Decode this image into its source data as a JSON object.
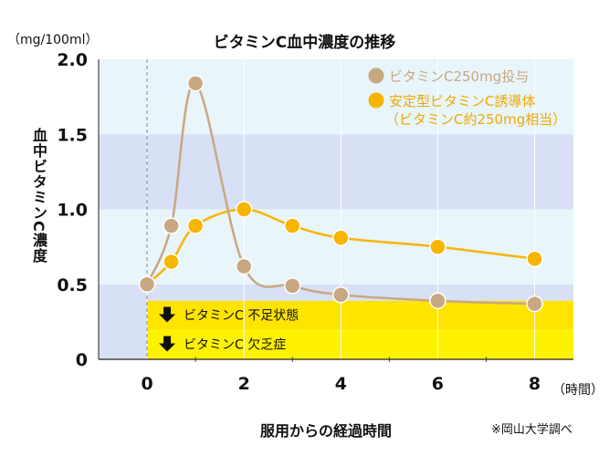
{
  "chart_data": {
    "type": "line",
    "title": "ビタミンC血中濃度の推移",
    "unit_label": "（mg/100ml）",
    "ylabel": "血中ビタミンC濃度",
    "xlabel": "服用からの経過時間",
    "x_unit_label": "（時間）",
    "source": "※岡山大学調べ",
    "xlim": [
      -1,
      8.8
    ],
    "ylim": [
      0,
      2.0
    ],
    "x_ticks": [
      0,
      2,
      4,
      6,
      8
    ],
    "y_ticks": [
      0,
      0.5,
      1.0,
      1.5,
      2.0
    ],
    "x_tick_labels": [
      "0",
      "2",
      "4",
      "6",
      "8"
    ],
    "y_tick_labels": [
      "0",
      "0.5",
      "1.0",
      "1.5",
      "2.0"
    ],
    "series": [
      {
        "name": "ビタミンC250mg投与",
        "color": "#c8a882",
        "x": [
          0,
          0.5,
          1,
          2,
          3,
          4,
          6,
          8
        ],
        "y": [
          0.5,
          0.89,
          1.84,
          0.62,
          0.49,
          0.43,
          0.39,
          0.37
        ]
      },
      {
        "name": "安定型ビタミンC誘導体",
        "name_line2": "（ビタミンC約250mg相当）",
        "color": "#f8b500",
        "x": [
          0,
          0.5,
          1,
          2,
          3,
          4,
          6,
          8
        ],
        "y": [
          0.5,
          0.65,
          0.89,
          1.0,
          0.89,
          0.81,
          0.75,
          0.67
        ]
      }
    ],
    "bands": [
      {
        "from": 0,
        "to": 0.5,
        "color": "#d8e0f5"
      },
      {
        "from": 0.5,
        "to": 1.0,
        "color": "#e8f5fb"
      },
      {
        "from": 1.0,
        "to": 1.5,
        "color": "#d8e0f5"
      },
      {
        "from": 1.5,
        "to": 2.0,
        "color": "#e8f5fb"
      }
    ],
    "threshold_zones": [
      {
        "label": "ビタミンC 不足状態",
        "from": 0.2,
        "to": 0.39,
        "color": "#ffe400"
      },
      {
        "label": "ビタミンC 欠乏症",
        "from": 0,
        "to": 0.2,
        "color": "#fff200"
      }
    ],
    "grid": true,
    "legend_position": "top-right"
  }
}
